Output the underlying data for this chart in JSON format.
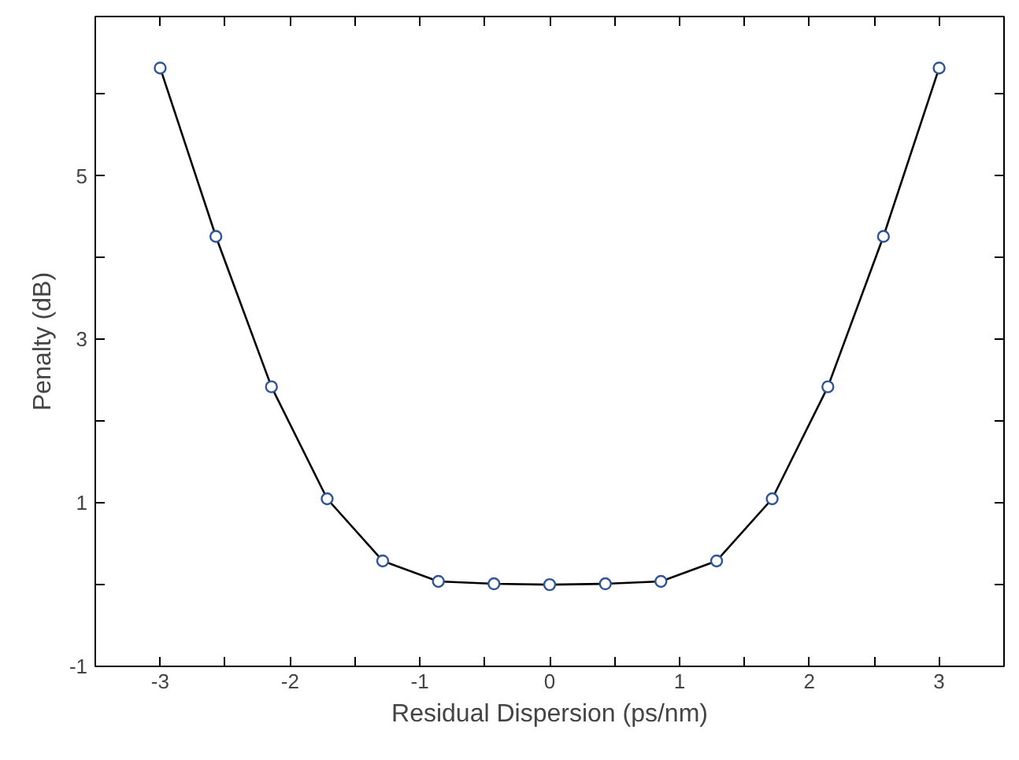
{
  "chart_data": {
    "type": "line",
    "xlabel": "Residual Dispersion (ps/nm)",
    "ylabel": "Penalty (dB)",
    "x": [
      -3,
      -2.571,
      -2.143,
      -1.714,
      -1.286,
      -0.857,
      -0.429,
      0,
      0.429,
      0.857,
      1.286,
      1.714,
      2.143,
      2.571,
      3
    ],
    "series": [
      {
        "color": "#000000",
        "values": [
          6.32,
          4.26,
          2.42,
          1.05,
          0.29,
          0.04,
          0.01,
          0,
          0.01,
          0.04,
          0.29,
          1.05,
          2.42,
          4.26,
          6.32
        ]
      }
    ],
    "xlim": [
      -3.5,
      3.5
    ],
    "ylim": [
      -1,
      6.95
    ],
    "xticks": [
      -3,
      {
        "value": -2.5,
        "label": null
      },
      -2,
      {
        "value": -1.5,
        "label": null
      },
      -1,
      {
        "value": -0.5,
        "label": null
      },
      0,
      {
        "value": 0.5,
        "label": null
      },
      1,
      {
        "value": 1.5,
        "label": null
      },
      2,
      {
        "value": 2.5,
        "label": null
      },
      3
    ],
    "yticks": [
      -1,
      {
        "value": 0,
        "label": null
      },
      1,
      {
        "value": 2,
        "label": null
      },
      3,
      {
        "value": 4,
        "label": null
      },
      5,
      {
        "value": 6,
        "label": null
      }
    ],
    "grid": false,
    "marker": "circle",
    "line_style": "solid"
  }
}
